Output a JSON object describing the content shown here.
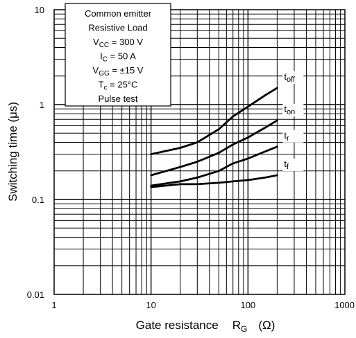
{
  "chart_data": {
    "type": "line",
    "xlabel": "Gate resistance",
    "xlabel_symbol": "R",
    "xlabel_sub": "G",
    "xlabel_unit": "(Ω)",
    "ylabel": "Switching time   (μs)",
    "x_scale": "log",
    "y_scale": "log",
    "xlim": [
      1,
      1000
    ],
    "ylim": [
      0.01,
      10
    ],
    "grid": true,
    "x_ticks": [
      {
        "value": 1,
        "label": "1"
      },
      {
        "value": 10,
        "label": "10"
      },
      {
        "value": 100,
        "label": "100"
      },
      {
        "value": 1000,
        "label": "1000"
      }
    ],
    "y_ticks": [
      {
        "value": 10,
        "label": "10"
      },
      {
        "value": 1,
        "label": "1"
      },
      {
        "value": 0.1,
        "label": "0.1"
      },
      {
        "value": 0.01,
        "label": "0.01"
      }
    ],
    "conditions": [
      {
        "id": "c1",
        "main": "Common emitter"
      },
      {
        "id": "c2",
        "main": "Resistive Load"
      },
      {
        "id": "c3",
        "main": "V",
        "sub": "CC",
        "rest": " = 300 V"
      },
      {
        "id": "c4",
        "main": "I",
        "sub": "C",
        "rest": " = 50 A"
      },
      {
        "id": "c5",
        "main": "V",
        "sub": "GG",
        "rest": " = ±15 V"
      },
      {
        "id": "c6",
        "main": "T",
        "sub": "c",
        "rest": " = 25°C"
      },
      {
        "id": "c7",
        "main": "Pulse test"
      }
    ],
    "series": [
      {
        "name": "toff",
        "label_main": "t",
        "label_sub": "off",
        "x": [
          10,
          20,
          30,
          50,
          70,
          100,
          150,
          200
        ],
        "y": [
          0.3,
          0.35,
          0.4,
          0.55,
          0.75,
          0.95,
          1.25,
          1.5
        ]
      },
      {
        "name": "ton",
        "label_main": "t",
        "label_sub": "on",
        "x": [
          10,
          20,
          30,
          50,
          70,
          100,
          150,
          200
        ],
        "y": [
          0.18,
          0.22,
          0.25,
          0.31,
          0.38,
          0.45,
          0.57,
          0.68
        ]
      },
      {
        "name": "tr",
        "label_main": "t",
        "label_sub": "r",
        "x": [
          10,
          20,
          30,
          50,
          70,
          100,
          150,
          200
        ],
        "y": [
          0.14,
          0.155,
          0.17,
          0.2,
          0.24,
          0.27,
          0.32,
          0.36
        ]
      },
      {
        "name": "tf",
        "label_main": "t",
        "label_sub": "f",
        "x": [
          10,
          20,
          30,
          50,
          70,
          100,
          150,
          200
        ],
        "y": [
          0.135,
          0.145,
          0.145,
          0.15,
          0.155,
          0.16,
          0.17,
          0.18
        ]
      }
    ]
  }
}
